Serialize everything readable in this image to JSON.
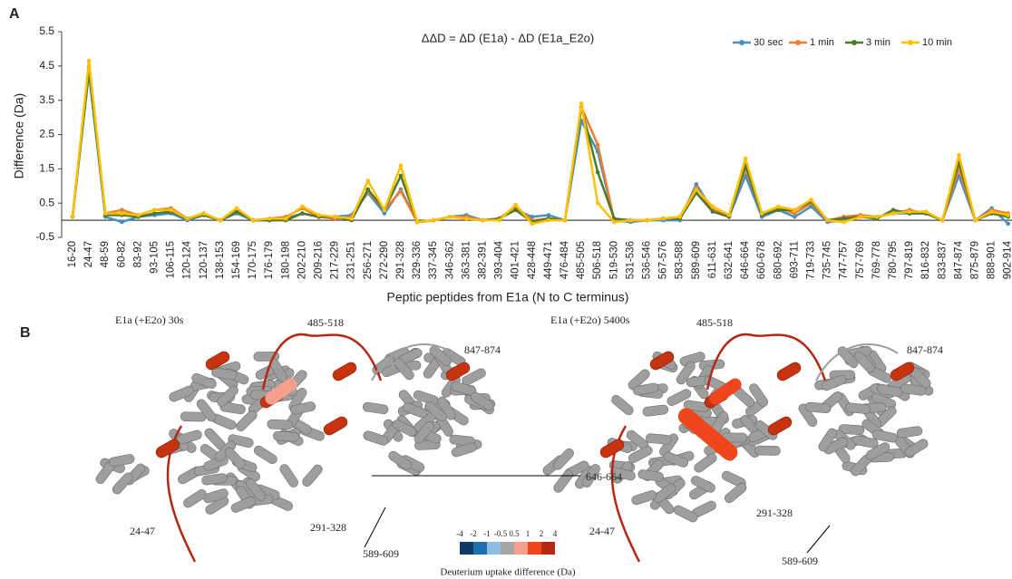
{
  "chart_data": {
    "type": "line",
    "title": "ΔΔD = ΔD (E1a) - ΔD (E1a_E2o)",
    "y_label": "Difference (Da)",
    "x_label": "Peptic peptides from E1a (N to C terminus)",
    "categories": [
      "16-20",
      "24-47",
      "48-59",
      "60-82",
      "83-92",
      "93-105",
      "106-115",
      "120-124",
      "120-137",
      "138-153",
      "154-169",
      "170-175",
      "176-179",
      "180-198",
      "202-210",
      "209-216",
      "217-229",
      "231-251",
      "256-271",
      "272-290",
      "291-328",
      "329-336",
      "337-345",
      "346-362",
      "363-381",
      "382-391",
      "393-404",
      "401-421",
      "428-448",
      "449-471",
      "476-484",
      "485-505",
      "506-518",
      "519-530",
      "531-536",
      "536-546",
      "567-576",
      "583-588",
      "589-609",
      "611-631",
      "632-641",
      "646-664",
      "660-678",
      "680-692",
      "693-711",
      "719-733",
      "735-745",
      "747-757",
      "757-769",
      "769-778",
      "780-795",
      "797-819",
      "816-832",
      "833-837",
      "847-874",
      "875-879",
      "888-901",
      "902-914"
    ],
    "series": [
      {
        "name": "30 sec",
        "color": "#4a8fc4",
        "values": [
          0.1,
          4.3,
          0.1,
          -0.05,
          0.1,
          0.15,
          0.2,
          0.0,
          0.15,
          0.0,
          0.2,
          0.0,
          0.0,
          0.05,
          0.2,
          0.1,
          0.1,
          0.15,
          0.8,
          0.2,
          0.9,
          -0.05,
          0.0,
          0.1,
          0.15,
          0.0,
          0.05,
          0.3,
          0.1,
          0.15,
          0.0,
          2.9,
          2.0,
          0.0,
          -0.05,
          0.0,
          0.0,
          0.0,
          1.05,
          0.3,
          0.1,
          1.3,
          0.1,
          0.3,
          0.1,
          0.4,
          -0.05,
          0.0,
          0.1,
          0.1,
          0.2,
          0.2,
          0.2,
          0.0,
          1.3,
          0.0,
          0.35,
          -0.1
        ]
      },
      {
        "name": "1 min",
        "color": "#ed7d31",
        "values": [
          0.1,
          4.5,
          0.2,
          0.3,
          0.15,
          0.3,
          0.35,
          0.05,
          0.2,
          0.0,
          0.3,
          0.0,
          0.05,
          0.1,
          0.35,
          0.1,
          0.05,
          0.1,
          0.85,
          0.3,
          0.85,
          -0.05,
          0.0,
          0.1,
          0.1,
          0.0,
          0.05,
          0.4,
          0.0,
          0.05,
          0.0,
          3.3,
          2.2,
          0.0,
          0.0,
          0.0,
          0.05,
          0.1,
          0.95,
          0.3,
          0.15,
          1.5,
          0.2,
          0.35,
          0.2,
          0.5,
          0.0,
          0.1,
          0.15,
          0.1,
          0.2,
          0.3,
          0.2,
          0.0,
          1.5,
          0.0,
          0.3,
          0.2
        ]
      },
      {
        "name": "3 min",
        "color": "#4e7a27",
        "values": [
          0.1,
          4.4,
          0.15,
          0.15,
          0.1,
          0.2,
          0.25,
          0.05,
          0.15,
          0.0,
          0.25,
          0.0,
          0.0,
          0.0,
          0.2,
          0.1,
          0.1,
          0.0,
          0.9,
          0.3,
          1.3,
          -0.05,
          0.0,
          0.1,
          0.05,
          0.0,
          0.05,
          0.3,
          -0.05,
          0.05,
          0.0,
          3.3,
          1.4,
          0.05,
          0.0,
          0.0,
          0.05,
          0.05,
          0.8,
          0.25,
          0.1,
          1.6,
          0.15,
          0.3,
          0.3,
          0.55,
          0.0,
          0.05,
          0.1,
          0.05,
          0.3,
          0.2,
          0.2,
          0.0,
          1.7,
          0.0,
          0.2,
          0.1
        ]
      },
      {
        "name": "10 min",
        "color": "#ffc000",
        "values": [
          0.1,
          4.65,
          0.2,
          0.2,
          0.15,
          0.3,
          0.3,
          0.05,
          0.2,
          0.0,
          0.35,
          0.0,
          0.05,
          0.05,
          0.4,
          0.15,
          0.1,
          0.05,
          1.15,
          0.3,
          1.6,
          -0.05,
          0.0,
          0.1,
          0.05,
          0.0,
          0.0,
          0.45,
          -0.1,
          0.0,
          0.0,
          3.4,
          0.5,
          -0.05,
          0.0,
          0.0,
          0.05,
          0.1,
          0.9,
          0.4,
          0.15,
          1.8,
          0.2,
          0.4,
          0.3,
          0.6,
          0.0,
          -0.05,
          0.1,
          0.1,
          0.2,
          0.25,
          0.25,
          0.0,
          1.9,
          0.0,
          0.25,
          0.15
        ]
      }
    ],
    "ylim": [
      -0.5,
      5.5
    ],
    "yticks": [
      -0.5,
      0.5,
      1.5,
      2.5,
      3.5,
      4.5,
      5.5
    ],
    "grid": false,
    "legend": "top-right"
  },
  "panel_labels": [
    "A",
    "B"
  ],
  "structures": [
    {
      "title": "E1a (+E2o) 30s",
      "labels": [
        "485-518",
        "847-874",
        "646-664",
        "24-47",
        "291-328",
        "589-609"
      ]
    },
    {
      "title": "E1a (+E2o) 5400s",
      "labels": [
        "485-518",
        "847-874",
        "24-47",
        "291-328",
        "589-609"
      ]
    }
  ],
  "colorbar": {
    "ticks": [
      -4,
      -2,
      -1,
      -0.5,
      0.5,
      1,
      2,
      4
    ],
    "colors": [
      "#0d3a66",
      "#1f6fae",
      "#8dbde3",
      "#a6a6a6",
      "#f4a08c",
      "#f0461c",
      "#b32a10"
    ],
    "label": "Deuterium uptake difference (Da)"
  }
}
